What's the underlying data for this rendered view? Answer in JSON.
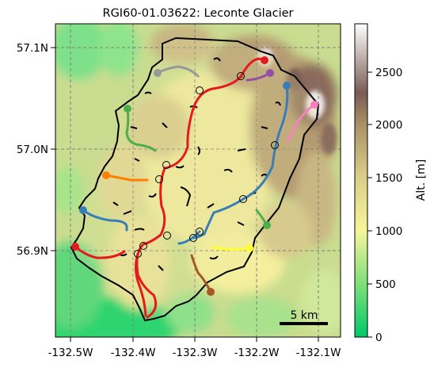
{
  "figure": {
    "title": "RGI60-01.03622: Leconte Glacier",
    "y_ticks": [
      {
        "label": "57.1N",
        "value": 57.1
      },
      {
        "label": "57.0N",
        "value": 57.0
      },
      {
        "label": "56.9N",
        "value": 56.9
      }
    ],
    "x_ticks": [
      {
        "label": "-132.5W",
        "value": -132.5
      },
      {
        "label": "-132.4W",
        "value": -132.4
      },
      {
        "label": "-132.3W",
        "value": -132.3
      },
      {
        "label": "-132.2W",
        "value": -132.2
      },
      {
        "label": "-132.1W",
        "value": -132.1
      }
    ],
    "scale_bar_label": "5 km",
    "scale_bar_km": 5,
    "grid_lines": true,
    "gridline_color": "#7f7f7f"
  },
  "colorbar": {
    "label": "Alt. [m]",
    "ticks": [
      {
        "label": "0",
        "value": 0
      },
      {
        "label": "500",
        "value": 500
      },
      {
        "label": "1000",
        "value": 1000
      },
      {
        "label": "1500",
        "value": 1500
      },
      {
        "label": "2000",
        "value": 2000
      },
      {
        "label": "2500",
        "value": 2500
      }
    ],
    "range": [
      0,
      2950
    ],
    "stops": [
      "#00c96a",
      "#7fe07a",
      "#f7f59a",
      "#d8cb87",
      "#a99066",
      "#7a5c55",
      "#ffffff"
    ]
  },
  "glacier": {
    "outline_color": "#000000",
    "flowline_colors": [
      "#e41a1c",
      "#377eb8",
      "#4daf4a",
      "#984ea3",
      "#ff7f00",
      "#ffff33",
      "#a65628",
      "#f781bf",
      "#999999"
    ]
  }
}
